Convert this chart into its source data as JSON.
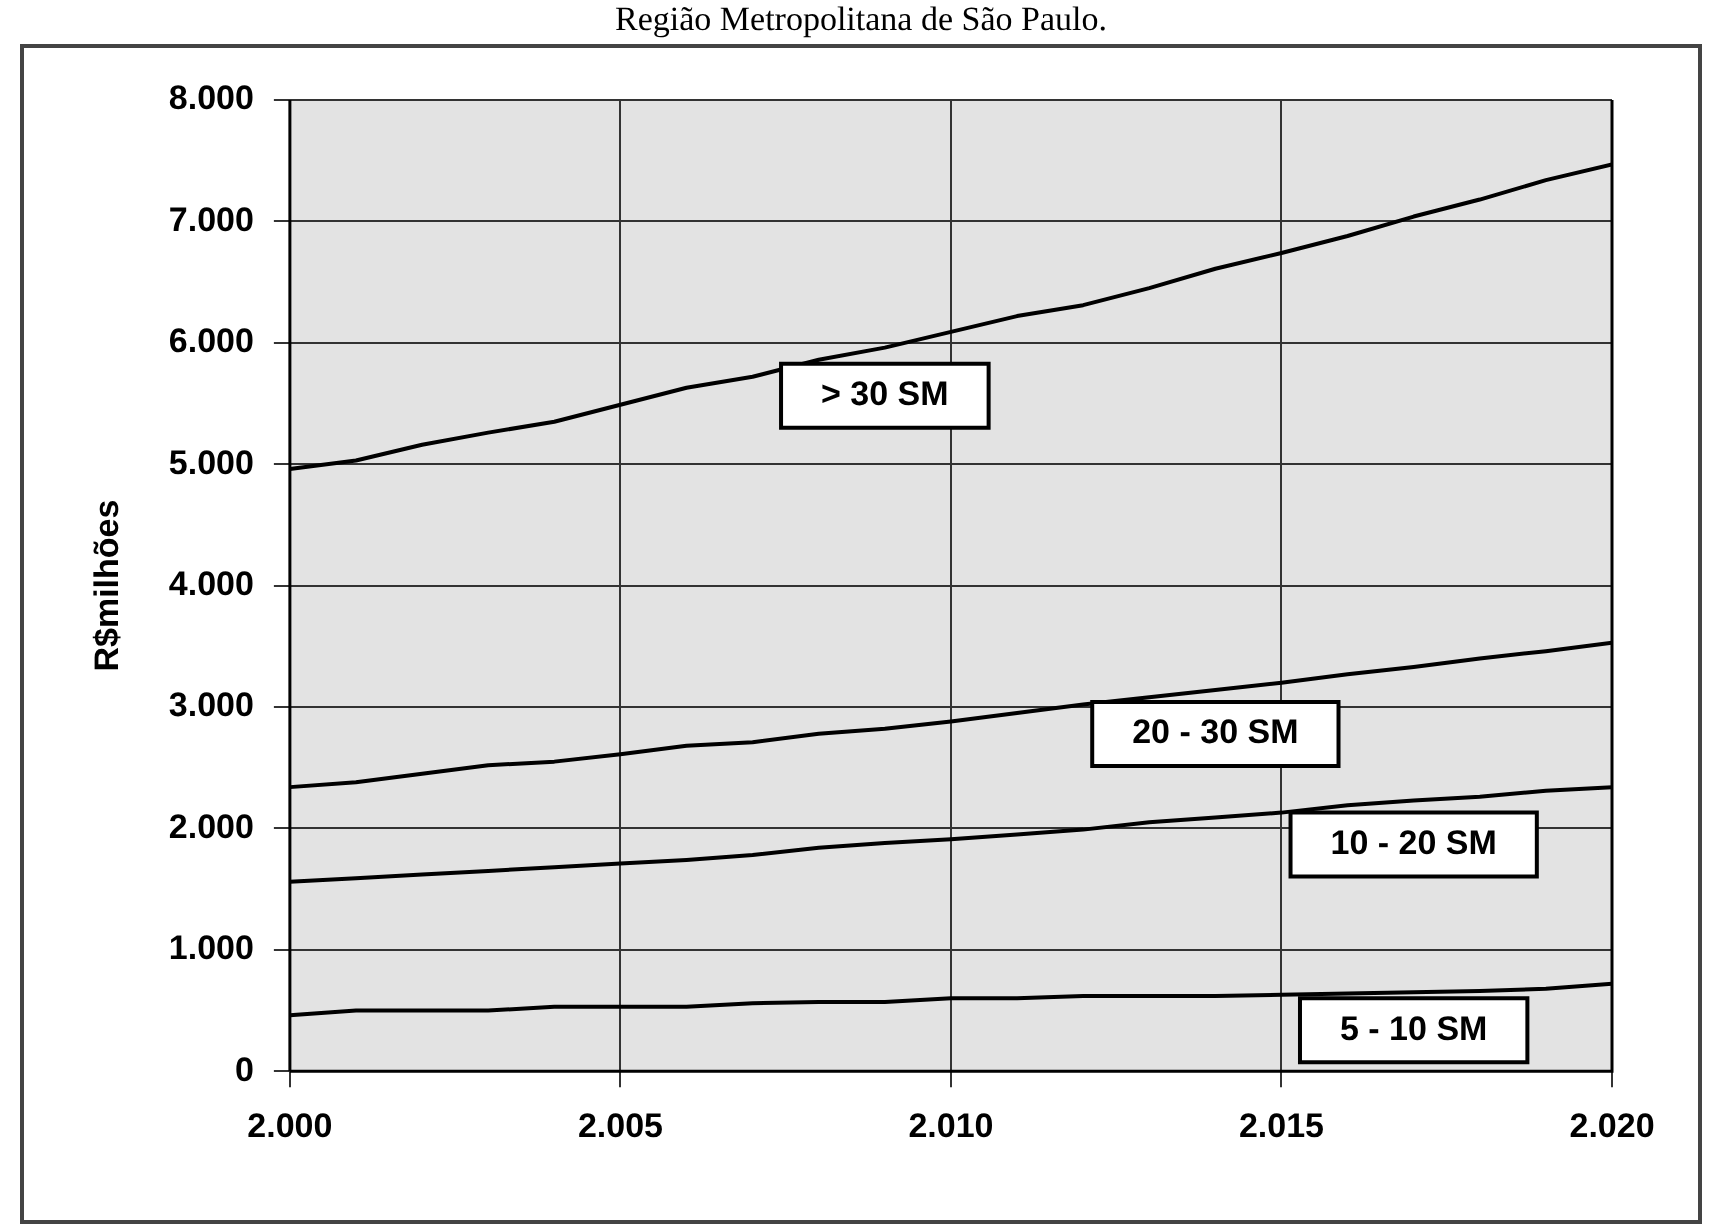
{
  "chart_data": {
    "type": "line",
    "title": "Região Metropolitana de São Paulo.",
    "ylabel": "R$milhões",
    "x": [
      2000,
      2001,
      2002,
      2003,
      2004,
      2005,
      2006,
      2007,
      2008,
      2009,
      2010,
      2011,
      2012,
      2013,
      2014,
      2015,
      2016,
      2017,
      2018,
      2019,
      2020
    ],
    "series": [
      {
        "name": "> 30 SM",
        "color": "#000000",
        "values": [
          4960,
          5030,
          5160,
          5260,
          5350,
          5490,
          5630,
          5720,
          5860,
          5960,
          6090,
          6220,
          6310,
          6450,
          6610,
          6740,
          6880,
          7040,
          7180,
          7340,
          7470
        ]
      },
      {
        "name": "20 - 30 SM",
        "color": "#000000",
        "values": [
          2340,
          2380,
          2450,
          2520,
          2550,
          2610,
          2680,
          2710,
          2780,
          2820,
          2880,
          2950,
          3020,
          3080,
          3140,
          3200,
          3270,
          3330,
          3400,
          3460,
          3530
        ]
      },
      {
        "name": "10 - 20 SM",
        "color": "#000000",
        "values": [
          1560,
          1590,
          1620,
          1650,
          1680,
          1710,
          1740,
          1780,
          1840,
          1880,
          1910,
          1950,
          1990,
          2050,
          2090,
          2130,
          2190,
          2230,
          2260,
          2310,
          2340
        ]
      },
      {
        "name": "5 - 10 SM",
        "color": "#000000",
        "values": [
          460,
          500,
          500,
          500,
          530,
          530,
          530,
          560,
          570,
          570,
          600,
          600,
          620,
          620,
          620,
          630,
          640,
          650,
          660,
          680,
          720
        ]
      }
    ],
    "xlim": [
      2000,
      2020
    ],
    "xticks": [
      {
        "value": 2000,
        "label": "2.000"
      },
      {
        "value": 2005,
        "label": "2.005"
      },
      {
        "value": 2010,
        "label": "2.010"
      },
      {
        "value": 2015,
        "label": "2.015"
      },
      {
        "value": 2020,
        "label": "2.020"
      }
    ],
    "ylim": [
      0,
      8000
    ],
    "yticks": [
      0,
      {
        "value": 1000,
        "label": "1.000"
      },
      {
        "value": 2000,
        "label": "2.000"
      },
      {
        "value": 3000,
        "label": "3.000"
      },
      {
        "value": 4000,
        "label": "4.000"
      },
      {
        "value": 5000,
        "label": "5.000"
      },
      {
        "value": 6000,
        "label": "6.000"
      },
      {
        "value": 7000,
        "label": "7.000"
      },
      {
        "value": 8000,
        "label": "8.000"
      }
    ],
    "grid": true,
    "legend": false,
    "marker": "none",
    "line_style": "solid"
  }
}
